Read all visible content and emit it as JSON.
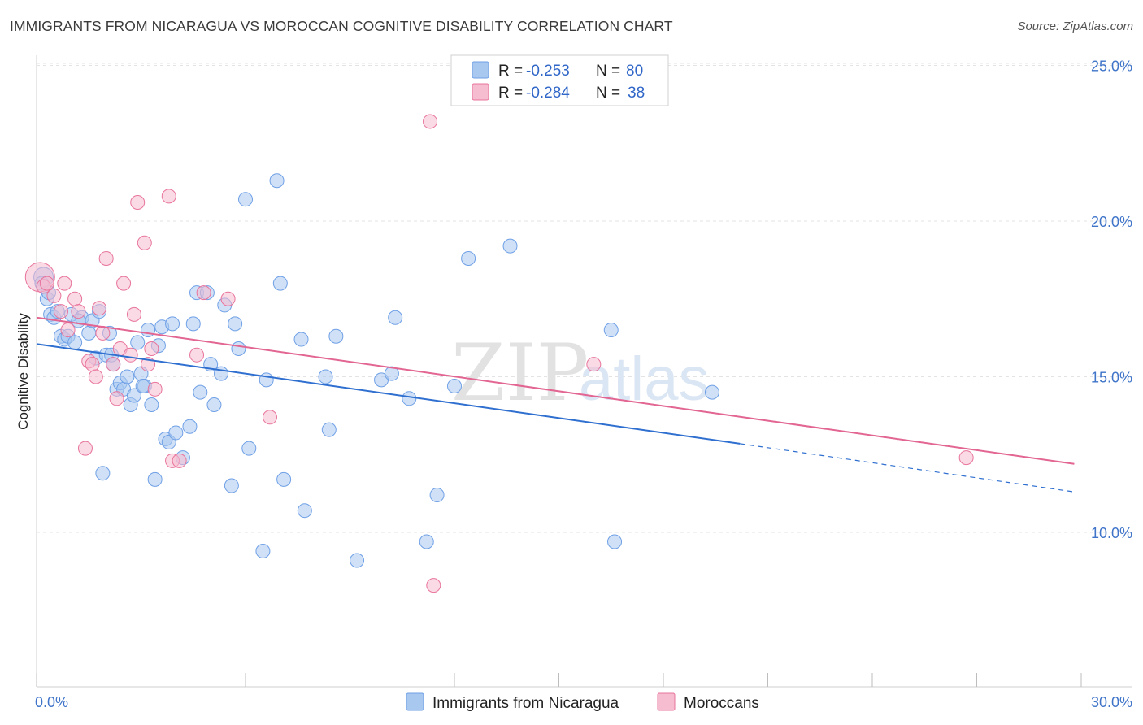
{
  "header": {
    "title": "IMMIGRANTS FROM NICARAGUA VS MOROCCAN COGNITIVE DISABILITY CORRELATION CHART",
    "source": "Source: ZipAtlas.com"
  },
  "watermark": {
    "zip": "ZIP",
    "atlas": "atlas"
  },
  "legend": {
    "r_label": "R =",
    "n_label": "N =",
    "rows": [
      {
        "r": "-0.253",
        "n": "80",
        "color": "#a9c8f0"
      },
      {
        "r": "-0.284",
        "n": "38",
        "color": "#f6bcd0"
      }
    ]
  },
  "bottom_legend": [
    {
      "label": "Immigrants from Nicaragua",
      "color": "#a9c8f0"
    },
    {
      "label": "Moroccans",
      "color": "#f6bcd0"
    }
  ],
  "chart_data": {
    "type": "scatter",
    "title": "IMMIGRANTS FROM NICARAGUA VS MOROCCAN COGNITIVE DISABILITY CORRELATION CHART",
    "xlabel": "",
    "ylabel": "Cognitive Disability",
    "xlim": [
      0,
      30
    ],
    "ylim": [
      5,
      26
    ],
    "x_tick_labels": [
      "0.0%",
      "30.0%"
    ],
    "y_ticks": [
      10,
      15,
      20,
      25
    ],
    "y_tick_labels": [
      "10.0%",
      "15.0%",
      "20.0%",
      "25.0%"
    ],
    "grid": true,
    "legend_position": "top-center",
    "series": [
      {
        "name": "Immigrants from Nicaragua",
        "color": "#6fa0e6",
        "fill": "#a9c8f0",
        "trend": {
          "x0": 0,
          "y0": 16.05,
          "x1": 20.2,
          "y1": 12.85,
          "dash_to_x": 29.8,
          "dash_to_y": 11.3
        },
        "points": [
          [
            0.2,
            18.2
          ],
          [
            0.3,
            17.5
          ],
          [
            0.4,
            17.0
          ],
          [
            0.5,
            16.9
          ],
          [
            0.6,
            17.1
          ],
          [
            0.7,
            16.3
          ],
          [
            0.8,
            16.2
          ],
          [
            0.9,
            16.3
          ],
          [
            1.0,
            17.0
          ],
          [
            1.1,
            16.1
          ],
          [
            1.3,
            16.9
          ],
          [
            1.5,
            16.4
          ],
          [
            1.6,
            16.8
          ],
          [
            1.7,
            15.6
          ],
          [
            1.8,
            17.1
          ],
          [
            1.9,
            11.9
          ],
          [
            2.0,
            15.7
          ],
          [
            2.1,
            16.4
          ],
          [
            2.2,
            15.4
          ],
          [
            2.3,
            14.6
          ],
          [
            2.4,
            14.8
          ],
          [
            2.5,
            14.6
          ],
          [
            2.6,
            15.0
          ],
          [
            2.7,
            14.1
          ],
          [
            2.8,
            14.4
          ],
          [
            2.9,
            16.1
          ],
          [
            3.0,
            15.1
          ],
          [
            3.1,
            14.7
          ],
          [
            3.2,
            16.5
          ],
          [
            3.3,
            14.1
          ],
          [
            3.4,
            11.7
          ],
          [
            3.5,
            16.0
          ],
          [
            3.6,
            16.6
          ],
          [
            3.7,
            13.0
          ],
          [
            3.8,
            12.9
          ],
          [
            3.9,
            16.7
          ],
          [
            4.0,
            13.2
          ],
          [
            4.2,
            12.4
          ],
          [
            4.4,
            13.4
          ],
          [
            4.5,
            16.7
          ],
          [
            4.6,
            17.7
          ],
          [
            4.7,
            14.5
          ],
          [
            4.9,
            17.7
          ],
          [
            5.0,
            15.4
          ],
          [
            5.1,
            14.1
          ],
          [
            5.3,
            15.1
          ],
          [
            5.4,
            17.3
          ],
          [
            5.6,
            11.5
          ],
          [
            5.7,
            16.7
          ],
          [
            5.8,
            15.9
          ],
          [
            6.0,
            20.7
          ],
          [
            6.1,
            12.7
          ],
          [
            6.5,
            9.4
          ],
          [
            6.6,
            14.9
          ],
          [
            6.9,
            21.3
          ],
          [
            7.0,
            18.0
          ],
          [
            7.1,
            11.7
          ],
          [
            7.6,
            16.2
          ],
          [
            7.7,
            10.7
          ],
          [
            8.3,
            15.0
          ],
          [
            8.4,
            13.3
          ],
          [
            8.6,
            16.3
          ],
          [
            9.2,
            9.1
          ],
          [
            9.9,
            14.9
          ],
          [
            10.2,
            15.1
          ],
          [
            10.3,
            16.9
          ],
          [
            10.7,
            14.3
          ],
          [
            11.2,
            9.7
          ],
          [
            11.5,
            11.2
          ],
          [
            12.0,
            14.7
          ],
          [
            12.4,
            18.8
          ],
          [
            13.6,
            19.2
          ],
          [
            16.6,
            9.7
          ],
          [
            16.5,
            16.5
          ],
          [
            19.4,
            14.5
          ],
          [
            0.15,
            18.0
          ],
          [
            0.35,
            17.7
          ],
          [
            1.2,
            16.8
          ],
          [
            2.15,
            15.7
          ],
          [
            3.05,
            14.7
          ]
        ]
      },
      {
        "name": "Moroccans",
        "color": "#e8749c",
        "fill": "#f6bcd0",
        "trend": {
          "x0": 0,
          "y0": 16.9,
          "x1": 29.8,
          "y1": 12.2
        },
        "points": [
          [
            0.1,
            18.2
          ],
          [
            0.2,
            17.9
          ],
          [
            0.3,
            18.0
          ],
          [
            0.5,
            17.6
          ],
          [
            0.7,
            17.1
          ],
          [
            0.8,
            18.0
          ],
          [
            0.9,
            16.5
          ],
          [
            1.1,
            17.5
          ],
          [
            1.2,
            17.1
          ],
          [
            1.4,
            12.7
          ],
          [
            1.5,
            15.5
          ],
          [
            1.6,
            15.4
          ],
          [
            1.7,
            15.0
          ],
          [
            1.8,
            17.2
          ],
          [
            1.9,
            16.4
          ],
          [
            2.0,
            18.8
          ],
          [
            2.2,
            15.4
          ],
          [
            2.3,
            14.3
          ],
          [
            2.4,
            15.9
          ],
          [
            2.5,
            18.0
          ],
          [
            2.7,
            15.7
          ],
          [
            2.8,
            17.0
          ],
          [
            2.9,
            20.6
          ],
          [
            3.1,
            19.3
          ],
          [
            3.2,
            15.4
          ],
          [
            3.3,
            15.9
          ],
          [
            3.4,
            14.6
          ],
          [
            3.8,
            20.8
          ],
          [
            3.9,
            12.3
          ],
          [
            4.1,
            12.3
          ],
          [
            4.6,
            15.7
          ],
          [
            4.8,
            17.7
          ],
          [
            5.5,
            17.5
          ],
          [
            6.7,
            13.7
          ],
          [
            11.3,
            23.2
          ],
          [
            11.4,
            8.3
          ],
          [
            16.0,
            15.4
          ],
          [
            26.7,
            12.4
          ]
        ]
      }
    ]
  }
}
